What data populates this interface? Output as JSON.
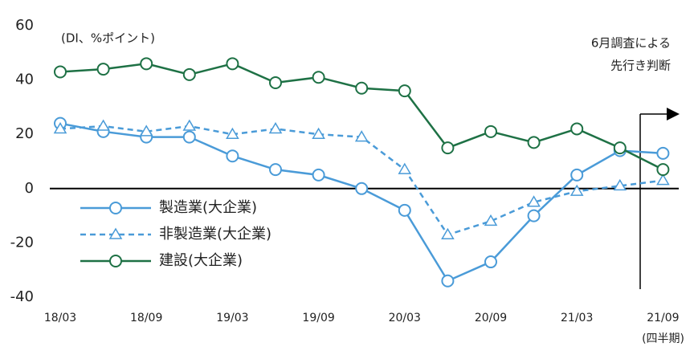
{
  "chart_data": {
    "type": "line",
    "unit_label": "(DI、%ポイント)",
    "annotation": [
      "6月調査による",
      "先行き判断"
    ],
    "x_label": "(四半期)",
    "categories": [
      "18/03",
      null,
      "18/09",
      null,
      "19/03",
      null,
      "19/09",
      null,
      "20/03",
      null,
      "20/09",
      null,
      "21/03",
      null,
      "21/09"
    ],
    "ylim": [
      -40,
      60
    ],
    "yticks": [
      -40,
      -20,
      0,
      20,
      40,
      60
    ],
    "series": [
      {
        "name": "製造業(大企業)",
        "color": "#4a9bd8",
        "marker": "circle",
        "dashed": false,
        "values": [
          24,
          21,
          19,
          19,
          12,
          7,
          5,
          0,
          -8,
          -34,
          -27,
          -10,
          5,
          14,
          13
        ]
      },
      {
        "name": "非製造業(大企業)",
        "color": "#4a9bd8",
        "marker": "triangle",
        "dashed": true,
        "values": [
          22,
          23,
          21,
          23,
          20,
          22,
          20,
          19,
          7,
          -17,
          -12,
          -5,
          -1,
          1,
          3
        ]
      },
      {
        "name": "建設(大企業)",
        "color": "#1e7145",
        "marker": "circle",
        "dashed": false,
        "values": [
          43,
          44,
          46,
          42,
          46,
          39,
          41,
          37,
          36,
          15,
          21,
          17,
          22,
          15,
          7
        ]
      }
    ]
  }
}
